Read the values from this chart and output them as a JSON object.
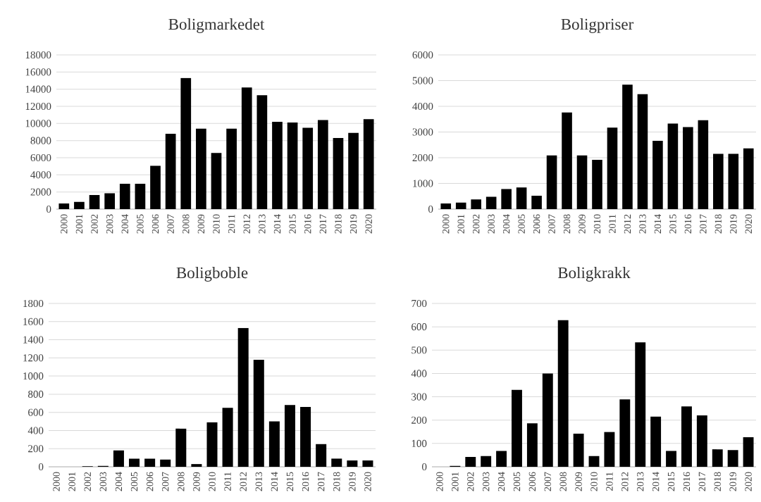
{
  "chart_data": [
    {
      "type": "bar",
      "title": "Boligmarkedet",
      "categories": [
        "2000",
        "2001",
        "2002",
        "2003",
        "2004",
        "2005",
        "2006",
        "2007",
        "2008",
        "2009",
        "2010",
        "2011",
        "2012",
        "2013",
        "2014",
        "2015",
        "2016",
        "2017",
        "2018",
        "2019",
        "2020"
      ],
      "values": [
        650,
        850,
        1650,
        1850,
        2950,
        2950,
        5050,
        8800,
        15300,
        9400,
        6550,
        9400,
        14200,
        13300,
        10200,
        10100,
        9500,
        10400,
        8300,
        8900,
        10500
      ],
      "color": "#000000",
      "ylim": [
        0,
        18000
      ],
      "yticks": [
        0,
        2000,
        4000,
        6000,
        8000,
        10000,
        12000,
        14000,
        16000,
        18000
      ],
      "grid": "y"
    },
    {
      "type": "bar",
      "title": "Boligpriser",
      "categories": [
        "2000",
        "2001",
        "2002",
        "2003",
        "2004",
        "2005",
        "2006",
        "2007",
        "2008",
        "2009",
        "2010",
        "2011",
        "2012",
        "2013",
        "2014",
        "2015",
        "2016",
        "2017",
        "2018",
        "2019",
        "2020"
      ],
      "values": [
        220,
        250,
        380,
        480,
        780,
        840,
        520,
        2090,
        3760,
        2090,
        1920,
        3170,
        4840,
        4470,
        2660,
        3330,
        3190,
        3460,
        2150,
        2150,
        2360
      ],
      "color": "#000000",
      "ylim": [
        0,
        6000
      ],
      "yticks": [
        0,
        1000,
        2000,
        3000,
        4000,
        5000,
        6000
      ],
      "grid": "y"
    },
    {
      "type": "bar",
      "title": "Boligboble",
      "categories": [
        "2000",
        "2001",
        "2002",
        "2003",
        "2004",
        "2005",
        "2006",
        "2007",
        "2008",
        "2009",
        "2010",
        "2011",
        "2012",
        "2013",
        "2014",
        "2015",
        "2016",
        "2017",
        "2018",
        "2019",
        "2020"
      ],
      "values": [
        0,
        0,
        5,
        10,
        180,
        90,
        90,
        80,
        420,
        30,
        490,
        650,
        1530,
        1180,
        500,
        680,
        660,
        250,
        90,
        70,
        70
      ],
      "color": "#000000",
      "ylim": [
        0,
        1800
      ],
      "yticks": [
        0,
        200,
        400,
        600,
        800,
        1000,
        1200,
        1400,
        1600,
        1800
      ],
      "grid": "y"
    },
    {
      "type": "bar",
      "title": "Boligkrakk",
      "categories": [
        "2000",
        "2001",
        "2002",
        "2003",
        "2004",
        "2005",
        "2006",
        "2007",
        "2008",
        "2009",
        "2010",
        "2011",
        "2012",
        "2013",
        "2014",
        "2015",
        "2016",
        "2017",
        "2018",
        "2019",
        "2020"
      ],
      "values": [
        0,
        4,
        42,
        46,
        68,
        330,
        186,
        400,
        628,
        142,
        46,
        149,
        289,
        533,
        215,
        68,
        259,
        220,
        75,
        72,
        127
      ],
      "color": "#000000",
      "ylim": [
        0,
        700
      ],
      "yticks": [
        0,
        100,
        200,
        300,
        400,
        500,
        600,
        700
      ],
      "grid": "y"
    }
  ]
}
